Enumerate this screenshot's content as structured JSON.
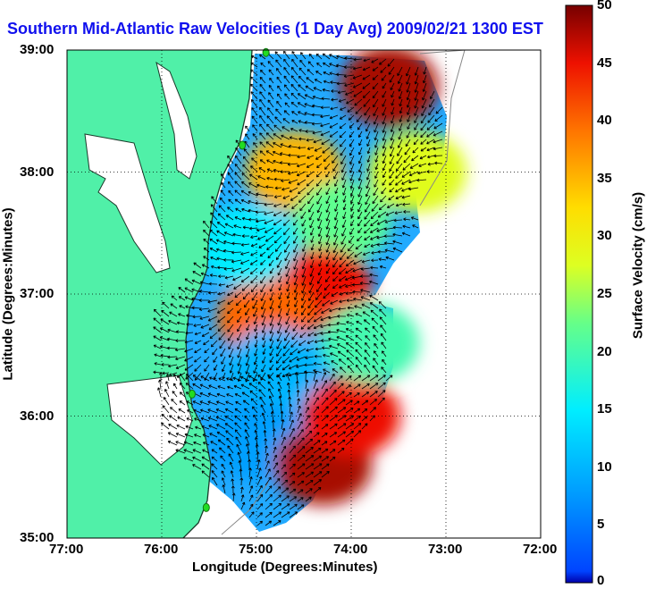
{
  "title": "Southern Mid-Atlantic Raw Velocities (1 Day Avg) 2009/02/21 1300 EST",
  "xlabel": "Longitude (Degrees:Minutes)",
  "ylabel": "Latitude (Degrees:Minutes)",
  "colorbar_label": "Surface Velocity (cm/s)",
  "xticks": [
    "77:00",
    "76:00",
    "75:00",
    "74:00",
    "73:00",
    "72:00"
  ],
  "yticks": [
    "39:00",
    "38:00",
    "37:00",
    "36:00",
    "35:00"
  ],
  "colorbar_ticks": [
    "50",
    "45",
    "40",
    "35",
    "30",
    "25",
    "20",
    "15",
    "10",
    "5",
    "0"
  ],
  "colors": {
    "land": "#50f0a8",
    "title": "#1010ee",
    "station": "#22dd22"
  },
  "chart_data": {
    "type": "heatmap",
    "title": "Southern Mid-Atlantic Raw Velocities (1 Day Avg) 2009/02/21 1300 EST",
    "xlabel": "Longitude (Degrees:Minutes)",
    "ylabel": "Latitude (Degrees:Minutes)",
    "xlim": [
      -77,
      -72
    ],
    "ylim": [
      35,
      39
    ],
    "color_scale": {
      "label": "Surface Velocity (cm/s)",
      "min": 0,
      "max": 50,
      "colormap": "jet"
    },
    "grid": true,
    "regions": [
      {
        "lon": -73.6,
        "lat": 38.7,
        "speed": 48
      },
      {
        "lon": -74.6,
        "lat": 38.0,
        "speed": 35
      },
      {
        "lon": -74.1,
        "lat": 37.6,
        "speed": 22
      },
      {
        "lon": -73.3,
        "lat": 38.0,
        "speed": 28
      },
      {
        "lon": -74.3,
        "lat": 37.05,
        "speed": 45
      },
      {
        "lon": -74.9,
        "lat": 36.8,
        "speed": 40
      },
      {
        "lon": -74.8,
        "lat": 36.4,
        "speed": 10
      },
      {
        "lon": -75.0,
        "lat": 35.8,
        "speed": 8
      },
      {
        "lon": -74.3,
        "lat": 35.6,
        "speed": 48
      },
      {
        "lon": -74.0,
        "lat": 36.0,
        "speed": 45
      },
      {
        "lon": -73.8,
        "lat": 36.6,
        "speed": 20
      },
      {
        "lon": -75.1,
        "lat": 37.4,
        "speed": 15
      }
    ],
    "stations": [
      {
        "lon": -74.9,
        "lat": 38.98
      },
      {
        "lon": -75.15,
        "lat": 38.22
      },
      {
        "lon": -75.68,
        "lat": 36.18
      },
      {
        "lon": -75.53,
        "lat": 35.25
      }
    ]
  }
}
